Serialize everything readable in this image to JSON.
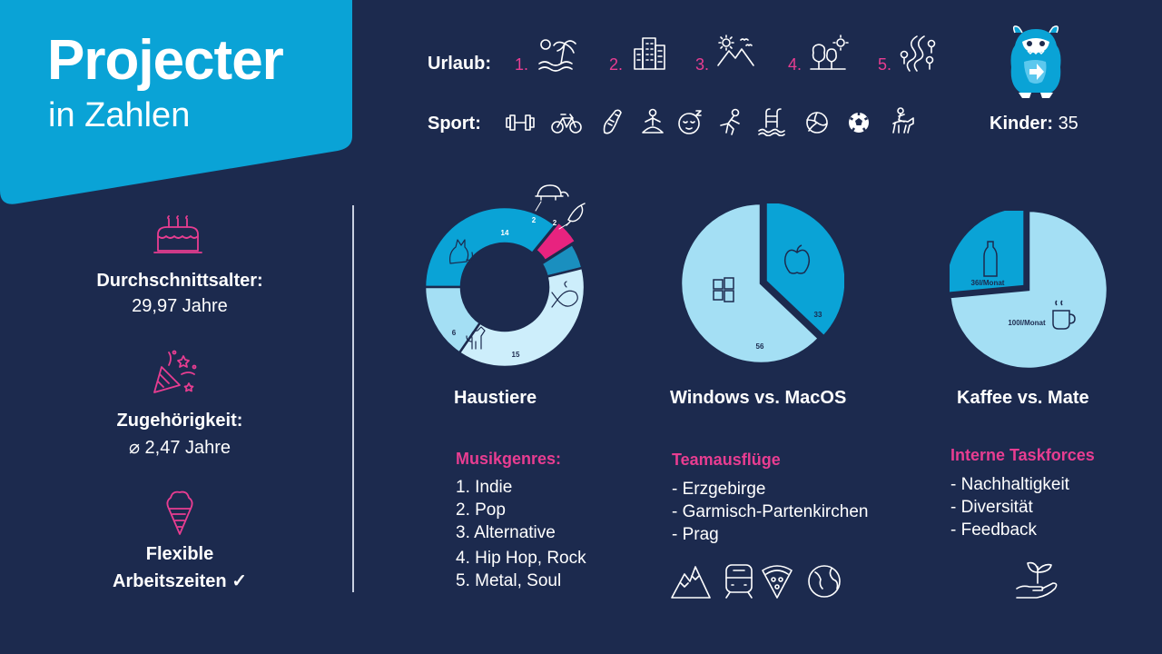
{
  "header": {
    "title": "Projecter",
    "subtitle": "in Zahlen"
  },
  "urlaub": {
    "label": "Urlaub:",
    "ranks": [
      "1.",
      "2.",
      "3.",
      "4.",
      "5."
    ],
    "icons": [
      "beach-palm-icon",
      "city-buildings-icon",
      "mountains-birds-icon",
      "forest-sun-icon",
      "hiking-path-icon"
    ]
  },
  "sport": {
    "label": "Sport:",
    "icons": [
      "dumbbell-icon",
      "bicycle-icon",
      "running-shoe-icon",
      "yoga-icon",
      "sleeping-face-icon",
      "climbing-icon",
      "swimming-pool-icon",
      "volleyball-icon",
      "soccer-ball-icon",
      "horse-riding-icon"
    ]
  },
  "kinder": {
    "label": "Kinder:",
    "value": "35"
  },
  "stats": [
    {
      "line1": "Durchschnittsalter:",
      "line2": "29,97 Jahre",
      "icon": "birthday-cake-icon"
    },
    {
      "line1": "Zugehörigkeit:",
      "line2": "⌀  2,47 Jahre",
      "icon": "party-popper-icon"
    },
    {
      "line1": "Flexible",
      "line2": "Arbeitszeiten ✓",
      "icon": "ice-cream-icon"
    }
  ],
  "chart_data": [
    {
      "type": "pie",
      "title": "Haustiere",
      "slices": [
        {
          "label": "Katze",
          "value": 14,
          "color": "#0aa3d6",
          "icon": "cat-icon"
        },
        {
          "label": "Schildkröte",
          "value": 2,
          "color": "#e8237f",
          "icon": "turtle-icon"
        },
        {
          "label": "Vogel",
          "value": 2,
          "color": "#1a8fbf",
          "icon": "bird-icon"
        },
        {
          "label": "Fisch",
          "value": 15,
          "color": "#cdeefb",
          "icon": "fish-icon"
        },
        {
          "label": "Hund",
          "value": 6,
          "color": "#a4dff4",
          "icon": "dog-icon"
        }
      ]
    },
    {
      "type": "pie",
      "title": "Windows vs. MacOS",
      "slices": [
        {
          "label": "MacOS",
          "value": 33,
          "color": "#0aa3d6",
          "icon": "apple-icon"
        },
        {
          "label": "Windows",
          "value": 56,
          "color": "#a4dff4",
          "icon": "windows-icon"
        }
      ]
    },
    {
      "type": "pie",
      "title": "Kaffee vs. Mate",
      "slices": [
        {
          "label": "Kaffee",
          "value": 100,
          "display": "100l/Monat",
          "color": "#a4dff4",
          "icon": "coffee-mug-icon"
        },
        {
          "label": "Mate",
          "value": 36,
          "display": "36l/Monat",
          "color": "#0aa3d6",
          "icon": "bottle-icon"
        }
      ]
    }
  ],
  "lists": {
    "musik": {
      "title": "Musikgenres:",
      "items": [
        "1. Indie",
        "2. Pop",
        "3. Alternative",
        "4. Hip Hop, Rock",
        "5. Metal, Soul"
      ]
    },
    "team": {
      "title": "Teamausflüge",
      "items": [
        "- Erzgebirge",
        "- Garmisch-Partenkirchen",
        "- Prag"
      ],
      "icons": [
        "mountain-icon",
        "train-icon",
        "pizza-icon",
        "globe-icon"
      ]
    },
    "task": {
      "title": "Interne Taskforces",
      "items": [
        "- Nachhaltigkeit",
        "- Diversität",
        "- Feedback"
      ],
      "icons": [
        "plant-hand-icon"
      ]
    }
  },
  "colors": {
    "background": "#1c2a4e",
    "header": "#0aa3d6",
    "accent": "#e83d91"
  }
}
